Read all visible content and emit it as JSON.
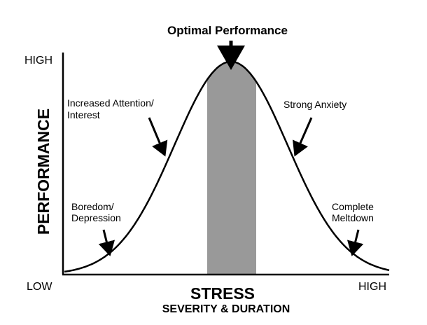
{
  "title": "Optimal Performance",
  "y_axis": {
    "label": "PERFORMANCE",
    "high": "HIGH",
    "low": "LOW"
  },
  "x_axis": {
    "label": "STRESS",
    "sublabel": "SEVERITY & DURATION",
    "high": "HIGH"
  },
  "annotations": [
    {
      "lines": [
        "Increased Attention/",
        "Interest"
      ]
    },
    {
      "lines": [
        "Strong Anxiety"
      ]
    },
    {
      "lines": [
        "Boredom/",
        "Depression"
      ]
    },
    {
      "lines": [
        "Complete",
        "Meltdown"
      ]
    }
  ]
}
